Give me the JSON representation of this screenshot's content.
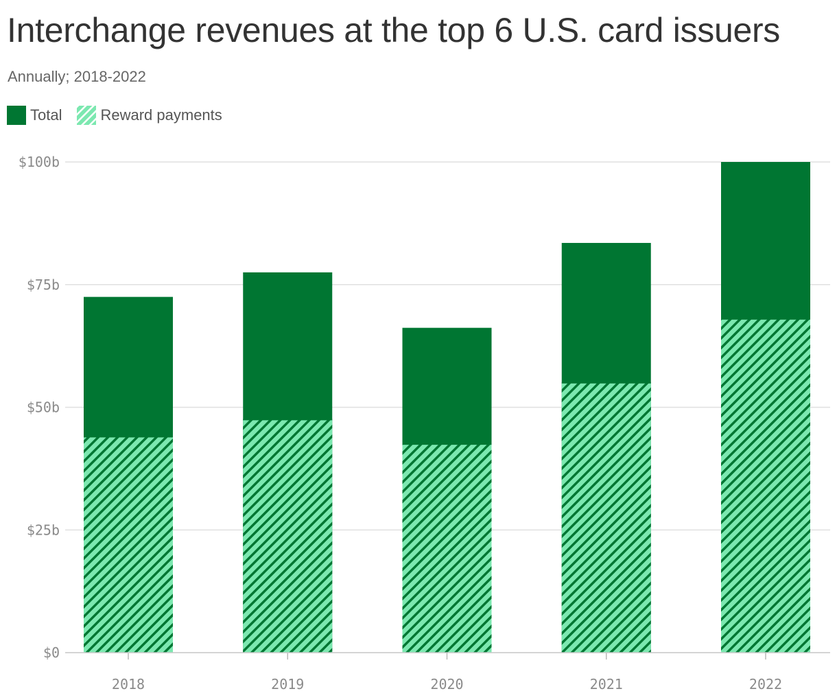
{
  "chart_data": {
    "type": "bar",
    "stacked": true,
    "title": "Interchange revenues at the top 6 U.S. card issuers",
    "subtitle": "Annually; 2018-2022",
    "categories": [
      "2018",
      "2019",
      "2020",
      "2021",
      "2022"
    ],
    "series": [
      {
        "name": "Total",
        "values": [
          72.5,
          77.5,
          66.2,
          83.5,
          100.0
        ],
        "color": "#007632",
        "pattern": "solid"
      },
      {
        "name": "Reward payments",
        "values": [
          44.0,
          47.5,
          42.5,
          55.0,
          68.0
        ],
        "color": "#7ce8b0",
        "pattern": "diagonal-hatch"
      }
    ],
    "ylim": [
      0,
      100
    ],
    "yticks": [
      0,
      25,
      50,
      75,
      100
    ],
    "ytick_labels": [
      "$0",
      "$25b",
      "$50b",
      "$75b",
      "$100b"
    ],
    "xlabel": "",
    "ylabel": "",
    "grid": true,
    "legend_position": "top-left"
  }
}
